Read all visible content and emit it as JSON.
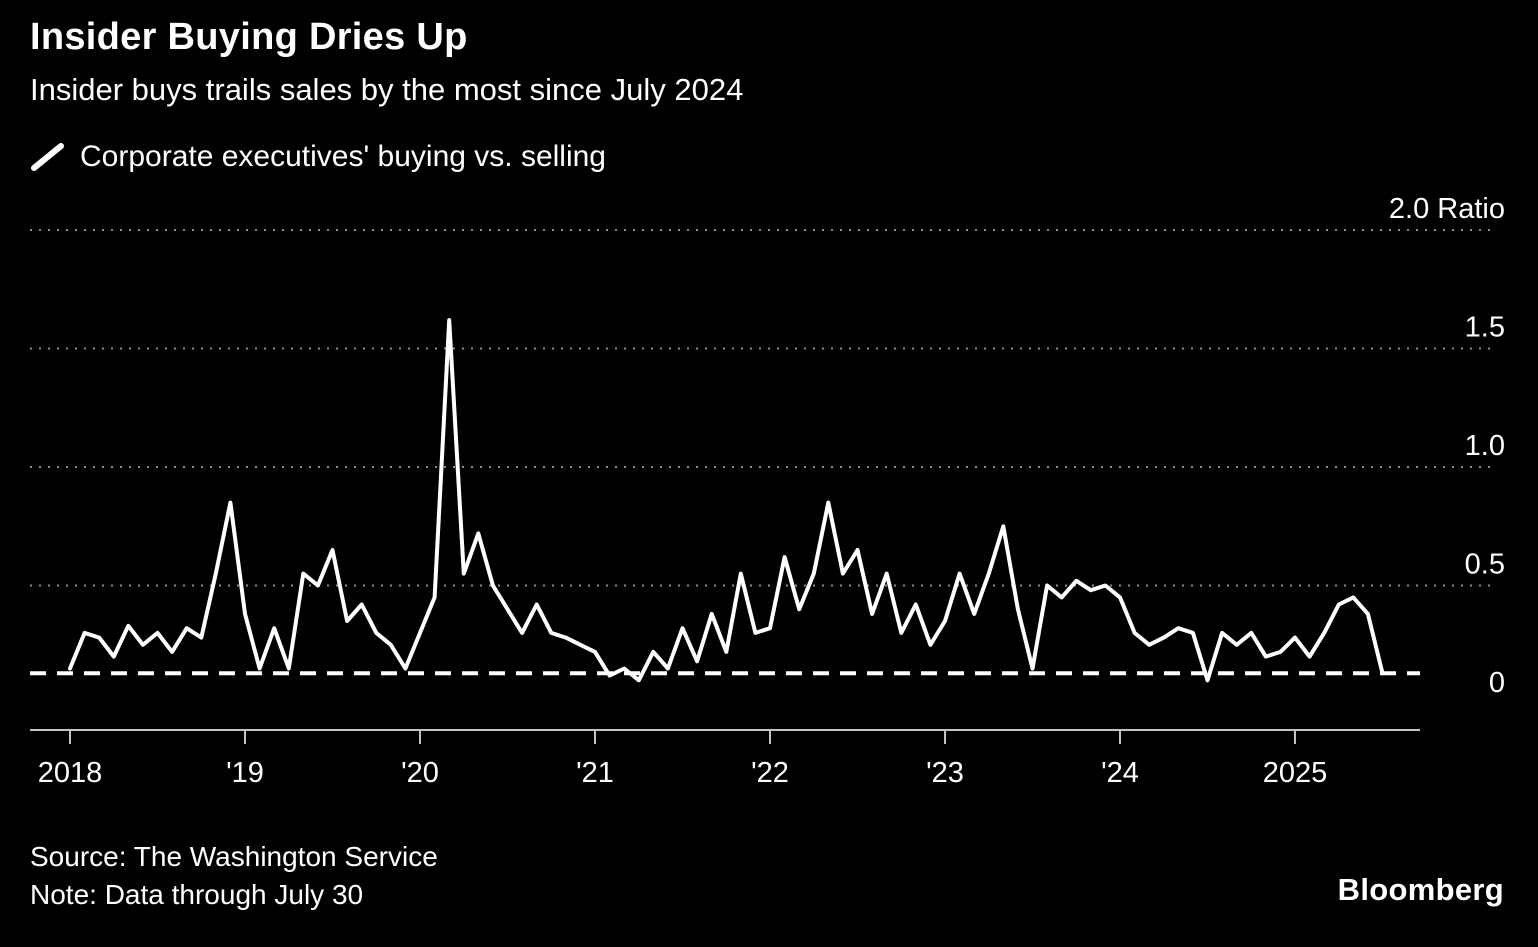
{
  "header": {
    "title": "Insider Buying Dries Up",
    "subtitle": "Insider buys trails sales by the most since July 2024"
  },
  "legend": {
    "label": "Corporate executives' buying vs. selling"
  },
  "footer": {
    "source": "Source: The Washington Service",
    "note": "Note: Data through July 30",
    "brand": "Bloomberg"
  },
  "colors": {
    "background": "#000000",
    "line": "#ffffff",
    "grid": "#8d8d8d",
    "axis": "#c3c3c3",
    "text": "#ffffff"
  },
  "chart_data": {
    "type": "line",
    "title": "Insider Buying Dries Up",
    "subtitle": "Insider buys trails sales by the most since July 2024",
    "series_name": "Corporate executives' buying vs. selling",
    "frequency": "monthly",
    "x_start": "2018-01",
    "x_end": "2025-07",
    "x_tick_labels": [
      "2018",
      "'19",
      "'20",
      "'21",
      "'22",
      "'23",
      "'24",
      "2025"
    ],
    "y_ticks": [
      {
        "value": 2.0,
        "label": "2.0 Ratio"
      },
      {
        "value": 1.5,
        "label": "1.5"
      },
      {
        "value": 1.0,
        "label": "1.0"
      },
      {
        "value": 0.5,
        "label": "0.5"
      },
      {
        "value": 0.0,
        "label": "0"
      }
    ],
    "ylim": [
      0,
      2.0
    ],
    "grid": "dotted-horizontal",
    "legend_position": "top-left",
    "last_value_dashline": 0.13,
    "values": [
      0.15,
      0.3,
      0.28,
      0.2,
      0.33,
      0.25,
      0.3,
      0.22,
      0.32,
      0.28,
      0.55,
      0.85,
      0.38,
      0.15,
      0.32,
      0.15,
      0.55,
      0.5,
      0.65,
      0.35,
      0.42,
      0.3,
      0.25,
      0.15,
      0.3,
      0.45,
      1.62,
      0.55,
      0.72,
      0.5,
      0.4,
      0.3,
      0.42,
      0.3,
      0.28,
      0.25,
      0.22,
      0.12,
      0.15,
      0.1,
      0.22,
      0.15,
      0.32,
      0.18,
      0.38,
      0.22,
      0.55,
      0.3,
      0.32,
      0.62,
      0.4,
      0.55,
      0.85,
      0.55,
      0.65,
      0.38,
      0.55,
      0.3,
      0.42,
      0.25,
      0.35,
      0.55,
      0.38,
      0.55,
      0.75,
      0.4,
      0.15,
      0.5,
      0.45,
      0.52,
      0.48,
      0.5,
      0.45,
      0.3,
      0.25,
      0.28,
      0.32,
      0.3,
      0.1,
      0.3,
      0.25,
      0.3,
      0.2,
      0.22,
      0.28,
      0.2,
      0.3,
      0.42,
      0.45,
      0.38,
      0.13
    ]
  }
}
